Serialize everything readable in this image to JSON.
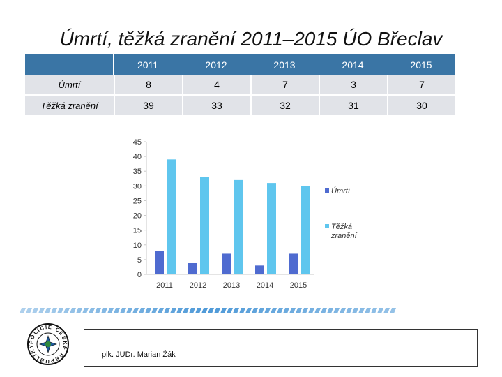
{
  "slide": {
    "title": "Úmrtí, těžká zranění 2011–2015 ÚO Břeclav",
    "footer_author": "plk. JUDr. Marian Žák",
    "logo_text": "POLICIE ČESKÉ REPUBLIKY"
  },
  "table": {
    "columns": [
      "2011",
      "2012",
      "2013",
      "2014",
      "2015"
    ],
    "rows": [
      {
        "label": "Úmrtí",
        "values": [
          "8",
          "4",
          "7",
          "3",
          "7"
        ]
      },
      {
        "label": "Těžká zranění",
        "values": [
          "39",
          "33",
          "32",
          "31",
          "30"
        ]
      }
    ]
  },
  "colors": {
    "header": "#3a75a5",
    "cell": "#e1e3e8",
    "series_deaths": "#4f6bd0",
    "series_injuries": "#5fc6ee"
  },
  "chart_data": {
    "type": "bar",
    "categories": [
      "2011",
      "2012",
      "2013",
      "2014",
      "2015"
    ],
    "series": [
      {
        "name": "Úmrtí",
        "values": [
          8,
          4,
          7,
          3,
          7
        ]
      },
      {
        "name": "Těžká zranění",
        "values": [
          39,
          33,
          32,
          31,
          30
        ]
      }
    ],
    "ylim": [
      0,
      45
    ],
    "yticks": [
      0,
      5,
      10,
      15,
      20,
      25,
      30,
      35,
      40,
      45
    ],
    "legend": "right",
    "grid": false
  }
}
